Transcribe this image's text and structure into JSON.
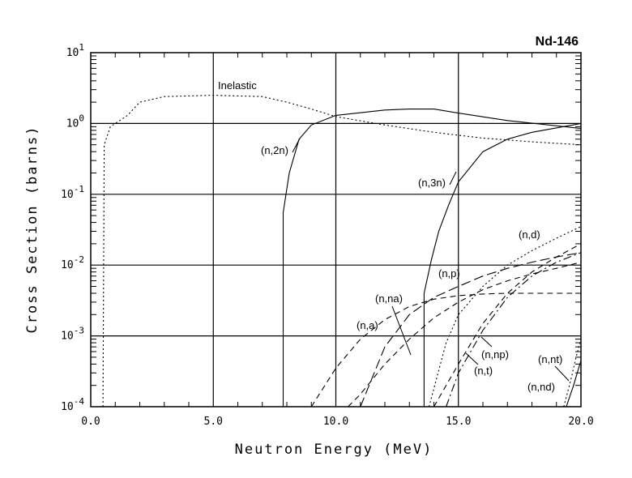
{
  "chart_data": {
    "type": "line",
    "title": "Nd-146",
    "xlabel": "Neutron Energy (MeV)",
    "ylabel": "Cross Section (barns)",
    "xlim": [
      0,
      20
    ],
    "ylim": [
      0.0001,
      10
    ],
    "yscale": "log",
    "grid": true,
    "x_ticks": [
      "0.0",
      "5.0",
      "10.0",
      "15.0",
      "20.0"
    ],
    "x_tick_values": [
      0,
      5,
      10,
      15,
      20
    ],
    "y_ticks": [
      {
        "base": "10",
        "exp": "1",
        "value": 10
      },
      {
        "base": "10",
        "exp": "0",
        "value": 1
      },
      {
        "base": "10",
        "exp": "-1",
        "value": 0.1
      },
      {
        "base": "10",
        "exp": "-2",
        "value": 0.01
      },
      {
        "base": "10",
        "exp": "-3",
        "value": 0.001
      },
      {
        "base": "10",
        "exp": "-4",
        "value": 0.0001
      }
    ],
    "series": [
      {
        "name": "Inelastic",
        "style": "dotted",
        "x": [
          0.5,
          0.55,
          0.8,
          1.5,
          2,
          3,
          5,
          7,
          8,
          9,
          10,
          12,
          14,
          16,
          18,
          20
        ],
        "y": [
          0.0001,
          0.5,
          0.9,
          1.3,
          2.0,
          2.4,
          2.5,
          2.4,
          2.0,
          1.6,
          1.25,
          0.95,
          0.75,
          0.62,
          0.55,
          0.5
        ]
      },
      {
        "name": "(n,2n)",
        "style": "solid",
        "x": [
          7.85,
          7.85,
          8.1,
          8.5,
          9,
          10,
          12,
          13,
          14,
          15,
          17,
          20
        ],
        "y": [
          0.0001,
          0.055,
          0.2,
          0.6,
          0.95,
          1.3,
          1.55,
          1.6,
          1.6,
          1.4,
          1.1,
          0.85
        ]
      },
      {
        "name": "(n,3n)",
        "style": "solid",
        "x": [
          13.6,
          13.6,
          13.9,
          14.2,
          14.6,
          15,
          16,
          17,
          18,
          20
        ],
        "y": [
          0.0001,
          0.004,
          0.012,
          0.03,
          0.07,
          0.15,
          0.4,
          0.6,
          0.75,
          1.0
        ]
      },
      {
        "name": "(n,p)",
        "style": "longdash",
        "x": [
          11,
          12,
          13,
          14,
          15,
          16,
          17,
          18,
          19,
          20
        ],
        "y": [
          0.0001,
          0.0007,
          0.002,
          0.0035,
          0.005,
          0.007,
          0.009,
          0.011,
          0.013,
          0.015
        ]
      },
      {
        "name": "(n,d)",
        "style": "dotted",
        "x": [
          13.8,
          14.5,
          15,
          16,
          17,
          18,
          19,
          20
        ],
        "y": [
          0.0001,
          0.0008,
          0.002,
          0.005,
          0.01,
          0.016,
          0.024,
          0.035
        ]
      },
      {
        "name": "(n,a)",
        "style": "dash",
        "x": [
          9,
          10,
          11,
          12,
          13,
          14,
          15,
          16,
          17,
          18,
          19,
          20
        ],
        "y": [
          0.0001,
          0.00035,
          0.0009,
          0.0017,
          0.0026,
          0.0033,
          0.0037,
          0.0039,
          0.004,
          0.004,
          0.004,
          0.004
        ]
      },
      {
        "name": "(n,na)",
        "style": "dash",
        "x": [
          10.5,
          11,
          12,
          13,
          14,
          15,
          16,
          17,
          18,
          19,
          20
        ],
        "y": [
          0.0001,
          0.00015,
          0.0004,
          0.0009,
          0.0018,
          0.003,
          0.0045,
          0.006,
          0.0075,
          0.009,
          0.011
        ]
      },
      {
        "name": "(n,t)",
        "style": "dashdot",
        "x": [
          14.5,
          15,
          16,
          17,
          18,
          19,
          20
        ],
        "y": [
          0.0001,
          0.0003,
          0.0012,
          0.0035,
          0.007,
          0.011,
          0.015
        ]
      },
      {
        "name": "(n,np)",
        "style": "dash",
        "x": [
          14,
          15,
          16,
          17,
          18,
          19,
          20
        ],
        "y": [
          0.0001,
          0.0004,
          0.0015,
          0.004,
          0.008,
          0.013,
          0.02
        ]
      },
      {
        "name": "(n,nt)",
        "style": "dotted",
        "x": [
          19.3,
          19.6,
          19.8,
          20
        ],
        "y": [
          0.0001,
          0.00025,
          0.0005,
          0.0009
        ]
      },
      {
        "name": "(n,nd)",
        "style": "solid",
        "x": [
          19.4,
          19.7,
          20
        ],
        "y": [
          0.0001,
          0.0002,
          0.00045
        ]
      }
    ],
    "labels": [
      "Inelastic",
      "(n,2n)",
      "(n,3n)",
      "(n,d)",
      "(n,p)",
      "(n,na)",
      "(n,a)",
      "(n,np)",
      "(n,t)",
      "(n,nt)",
      "(n,nd)"
    ]
  }
}
